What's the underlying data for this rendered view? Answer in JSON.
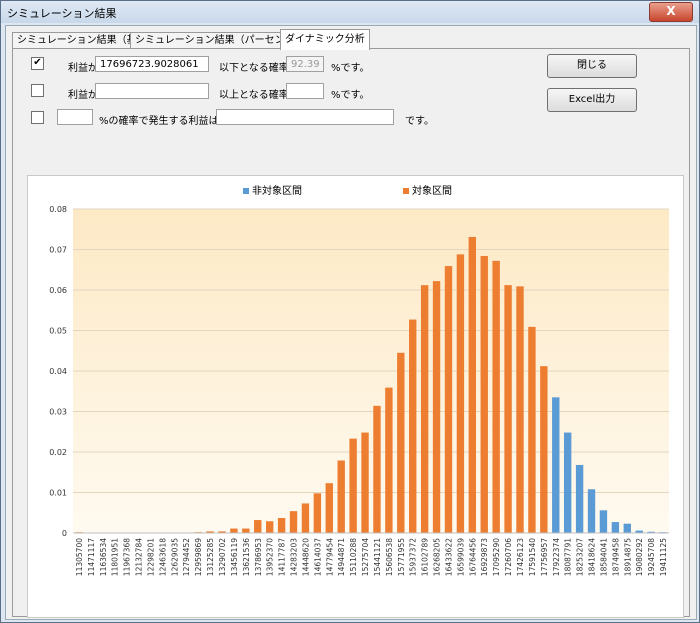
{
  "window": {
    "title": "シミュレーション結果",
    "close_label": "X"
  },
  "tabs": [
    {
      "label": "シミュレーション結果（基本）"
    },
    {
      "label": "シミュレーション結果（パーセンタイル）"
    },
    {
      "label": "ダイナミック分析"
    }
  ],
  "rows": {
    "row1": {
      "checked": "✔",
      "label": "利益が",
      "value": "17696723.9028061",
      "middle": "以下となる確率は",
      "prob": "92.39",
      "suffix": "%です。"
    },
    "row2": {
      "label": "利益が",
      "value": "",
      "middle": "以上となる確率は",
      "prob": "",
      "suffix": "%です。"
    },
    "row3": {
      "pct_value": "",
      "middle": "%の確率で発生する利益は",
      "result": "",
      "suffix": "です。"
    }
  },
  "buttons": {
    "close": "閉じる",
    "excel": "Excel出力"
  },
  "colors": {
    "non_target": "#5b9bd5",
    "target": "#ed7d31"
  },
  "chart_data": {
    "type": "bar",
    "title": "",
    "xlabel": "",
    "ylabel": "",
    "ylim": [
      0,
      0.08
    ],
    "yticks": [
      "0",
      "0.01",
      "0.02",
      "0.03",
      "0.04",
      "0.05",
      "0.06",
      "0.07",
      "0.08"
    ],
    "legend": [
      "非対象区間",
      "対象区間"
    ],
    "legend_position": "top",
    "grid": true,
    "categories": [
      "11305700",
      "11471117",
      "11636534",
      "11801951",
      "11967368",
      "12132784",
      "12298201",
      "12463618",
      "12629035",
      "12794452",
      "12959869",
      "13125285",
      "13290702",
      "13456119",
      "13621536",
      "13786953",
      "13952370",
      "14117787",
      "14283203",
      "14448620",
      "14614037",
      "14779454",
      "14944871",
      "15110288",
      "15275704",
      "15441121",
      "15606538",
      "15771955",
      "15937372",
      "16102789",
      "16268205",
      "16433622",
      "16599039",
      "16764456",
      "16929873",
      "17095290",
      "17260706",
      "17426123",
      "17591540",
      "17756957",
      "17922374",
      "18087791",
      "18253207",
      "18418624",
      "18584041",
      "18749458",
      "18914875",
      "19080292",
      "19245708",
      "19411125"
    ],
    "series": [
      {
        "name": "対象区間",
        "values": [
          0.0002,
          0.0001,
          0,
          0,
          0,
          0,
          0.0001,
          0,
          0,
          0.0001,
          0.0002,
          0.0004,
          0.0004,
          0.0011,
          0.0011,
          0.0032,
          0.0029,
          0.0037,
          0.0054,
          0.0073,
          0.0098,
          0.0123,
          0.0179,
          0.0233,
          0.0248,
          0.0314,
          0.0359,
          0.0445,
          0.0527,
          0.0612,
          0.0622,
          0.0659,
          0.0688,
          0.0731,
          0.0684,
          0.0672,
          0.0612,
          0.0609,
          0.0509,
          0.0412,
          0,
          0,
          0,
          0,
          0,
          0,
          0,
          0,
          0,
          0
        ]
      },
      {
        "name": "非対象区間",
        "values": [
          0,
          0,
          0,
          0,
          0,
          0,
          0,
          0,
          0,
          0,
          0,
          0,
          0,
          0,
          0,
          0,
          0,
          0,
          0,
          0,
          0,
          0,
          0,
          0,
          0,
          0,
          0,
          0,
          0,
          0,
          0,
          0,
          0,
          0,
          0,
          0,
          0,
          0,
          0,
          0,
          0.0335,
          0.0248,
          0.0168,
          0.0108,
          0.0056,
          0.0027,
          0.0023,
          0.0006,
          0.0003,
          0.0002
        ]
      }
    ]
  }
}
